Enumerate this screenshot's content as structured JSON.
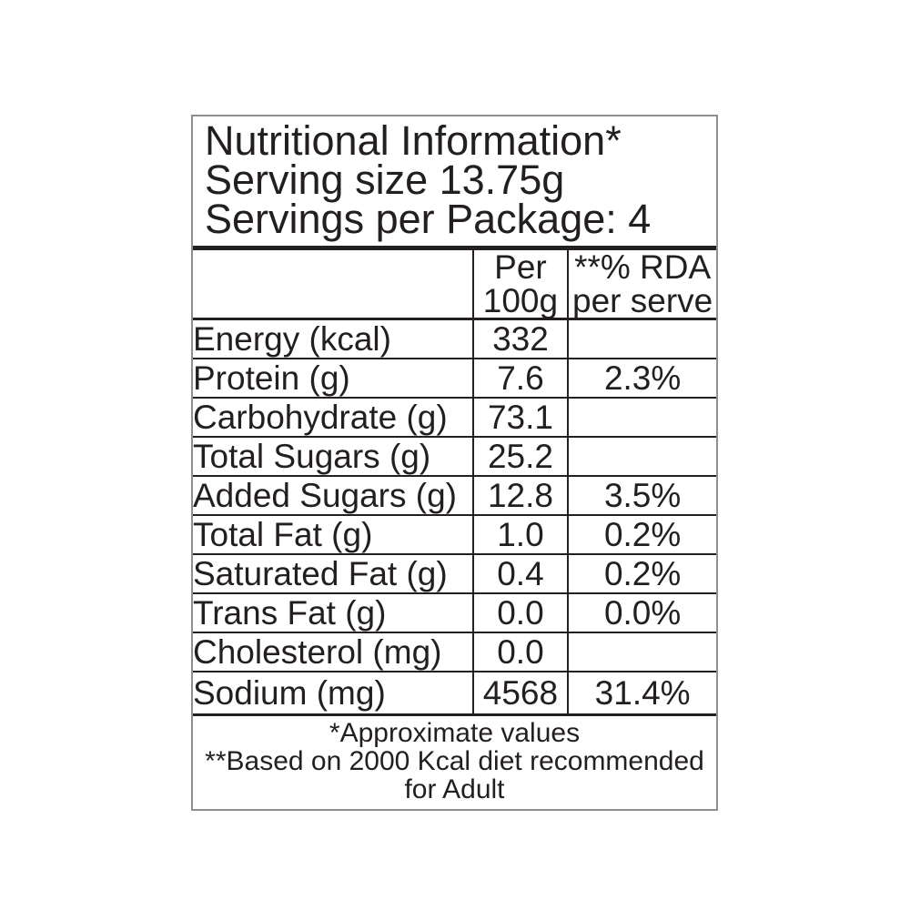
{
  "label": {
    "header": {
      "title": "Nutritional Information*",
      "serving_size": "Serving size 13.75g",
      "servings_per_package": "Servings per Package: 4"
    },
    "table": {
      "col_headers": {
        "name": "",
        "per_100g_line1": "Per",
        "per_100g_line2": "100g",
        "rda_line1": "**% RDA",
        "rda_line2": "per serve"
      },
      "rows": [
        {
          "name": "Energy (kcal)",
          "per_100g": "332",
          "rda_per_serve": ""
        },
        {
          "name": "Protein (g)",
          "per_100g": "7.6",
          "rda_per_serve": "2.3%"
        },
        {
          "name": "Carbohydrate (g)",
          "per_100g": "73.1",
          "rda_per_serve": ""
        },
        {
          "name": "Total Sugars (g)",
          "per_100g": "25.2",
          "rda_per_serve": ""
        },
        {
          "name": "Added Sugars (g)",
          "per_100g": "12.8",
          "rda_per_serve": "3.5%"
        },
        {
          "name": "Total Fat (g)",
          "per_100g": "1.0",
          "rda_per_serve": "0.2%"
        },
        {
          "name": "Saturated Fat (g)",
          "per_100g": "0.4",
          "rda_per_serve": "0.2%"
        },
        {
          "name": "Trans Fat (g)",
          "per_100g": "0.0",
          "rda_per_serve": "0.0%"
        },
        {
          "name": "Cholesterol (mg)",
          "per_100g": "0.0",
          "rda_per_serve": ""
        },
        {
          "name": "Sodium (mg)",
          "per_100g": "4568",
          "rda_per_serve": "31.4%"
        }
      ]
    },
    "footnotes": {
      "line1": "*Approximate values",
      "line2": "**Based on 2000 Kcal diet recommended",
      "line3": "for Adult"
    },
    "colors": {
      "text": "#231f20",
      "rule": "#231f20",
      "outer_border": "#8f8f8f",
      "background": "#ffffff"
    }
  }
}
